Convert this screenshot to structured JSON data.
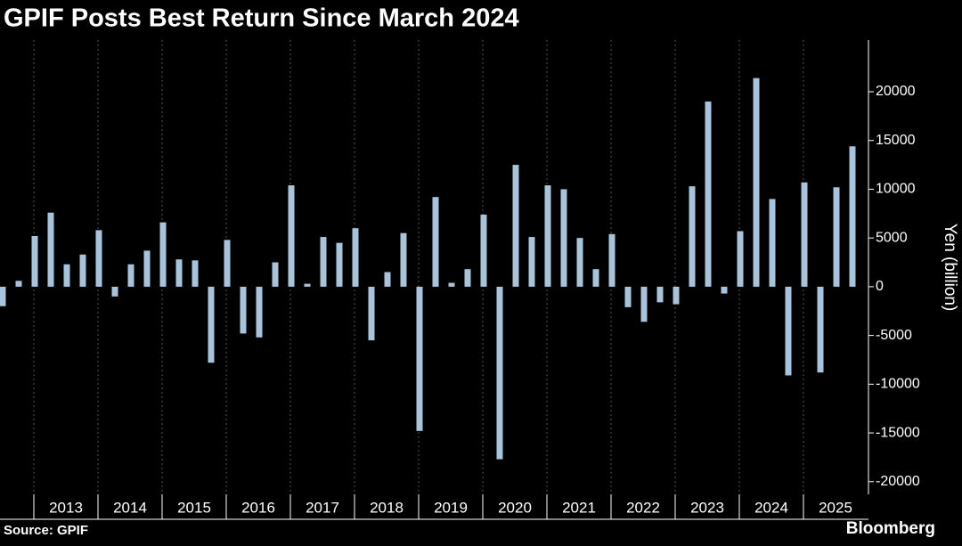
{
  "chart_data": {
    "type": "bar",
    "title": "GPIF Posts Best Return Since March 2024",
    "y_label": "Yen (billion)",
    "source": "Source: GPIF",
    "brand": "Bloomberg",
    "color": "#a8c3dc",
    "values": [
      -2000,
      600,
      5200,
      7600,
      2300,
      3300,
      5800,
      -1000,
      2300,
      3700,
      6600,
      2800,
      2700,
      -7800,
      4800,
      -4800,
      -5200,
      2500,
      10400,
      300,
      5100,
      4500,
      6000,
      -5500,
      1500,
      5500,
      -14800,
      9200,
      400,
      1800,
      7400,
      -17700,
      12500,
      5100,
      10400,
      10000,
      5000,
      1800,
      5400,
      -2100,
      -3600,
      -1600,
      -1800,
      10300,
      19000,
      -700,
      5700,
      21400,
      9000,
      -9100,
      10700,
      -8800,
      10200,
      14400
    ],
    "year_labels": [
      "2013",
      "2014",
      "2015",
      "2016",
      "2017",
      "2018",
      "2019",
      "2020",
      "2021",
      "2022",
      "2023",
      "2024",
      "2025"
    ],
    "ylim": [
      -21300,
      25300
    ],
    "yticks": [
      -20000,
      -15000,
      -10000,
      -5000,
      0,
      5000,
      10000,
      15000,
      20000
    ],
    "grid": true
  }
}
